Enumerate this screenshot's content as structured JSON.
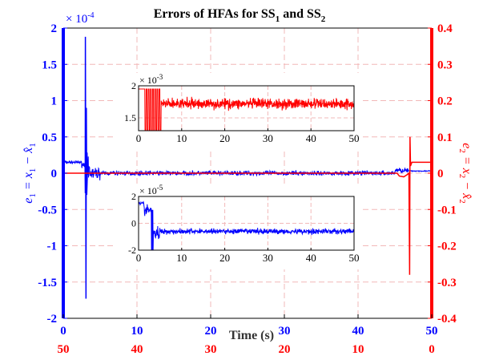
{
  "chart_data": {
    "type": "line",
    "title": {
      "main": "Errors of HFAs for SS",
      "sub1": "1",
      "and": " and SS",
      "sub2": "2"
    },
    "xlabel": "Time (s)",
    "xlim": [
      0,
      50
    ],
    "xticks_top": [
      "0",
      "10",
      "20",
      "30",
      "40",
      "50"
    ],
    "xticks_bottom": [
      "50",
      "40",
      "30",
      "20",
      "10",
      "0"
    ],
    "ylabel_left": {
      "e": "e",
      "sub": "1",
      "rhs": " = x",
      "rhs_sub": "1",
      "minus": " − x̂",
      "minus_sub": "1"
    },
    "ylabel_right": {
      "e": "e",
      "sub": "2",
      "rhs": " = x",
      "rhs_sub": "2",
      "minus": " − x̂",
      "minus_sub": "2"
    },
    "ylim_left": [
      -2,
      2
    ],
    "y_left_multiplier": {
      "base": "× 10",
      "exp": "-4"
    },
    "yticks_left": [
      "2",
      "1.5",
      "1",
      "0.5",
      "0",
      "-0.5",
      "-1",
      "-1.5",
      "-2"
    ],
    "ylim_right": [
      -0.4,
      0.4
    ],
    "yticks_right": [
      "0.4",
      "0.3",
      "0.2",
      "0.1",
      "0",
      "-0.1",
      "-0.2",
      "-0.3",
      "-0.4"
    ],
    "grid": true,
    "series": [
      {
        "axis": "left",
        "color": "#0000ff",
        "x_range": [
          0,
          50
        ],
        "key_points": [
          [
            0,
            0.15
          ],
          [
            2.5,
            0.15
          ],
          [
            3,
            1.88
          ],
          [
            3.1,
            -1.73
          ],
          [
            3.5,
            -0.1
          ],
          [
            5,
            0.02
          ],
          [
            45,
            0.03
          ],
          [
            46.5,
            0.05
          ],
          [
            47,
            0.03
          ]
        ]
      },
      {
        "axis": "right",
        "color": "#ff0000",
        "x_range": [
          0,
          50
        ],
        "key_points": [
          [
            0,
            0
          ],
          [
            45.5,
            0
          ],
          [
            46.5,
            -0.01
          ],
          [
            47,
            -0.28
          ],
          [
            47.1,
            0.1
          ],
          [
            47.3,
            0.03
          ],
          [
            50,
            0.03
          ]
        ]
      }
    ],
    "insets": [
      {
        "color": "#ff0000",
        "xlim": [
          0,
          50
        ],
        "ylim": [
          1.3,
          2.0
        ],
        "multiplier": {
          "base": "× 10",
          "exp": "-3"
        },
        "yticks": [
          "2",
          "1.5"
        ],
        "xticks": [
          "0",
          "10",
          "20",
          "30",
          "40",
          "50"
        ],
        "steady_mean": 1.72,
        "steady_amplitude": 0.12
      },
      {
        "color": "#0000ff",
        "xlim": [
          0,
          50
        ],
        "ylim": [
          -2,
          2
        ],
        "multiplier": {
          "base": "× 10",
          "exp": "-5"
        },
        "yticks": [
          "2",
          "0",
          "-2"
        ],
        "xticks": [
          "0",
          "10",
          "20",
          "30",
          "40",
          "50"
        ],
        "steady_mean": -0.6,
        "steady_amplitude": 0.3
      }
    ]
  },
  "colors": {
    "left_axis": "#0000ff",
    "right_axis": "#ff0000",
    "grid": "#f2b8b8"
  }
}
